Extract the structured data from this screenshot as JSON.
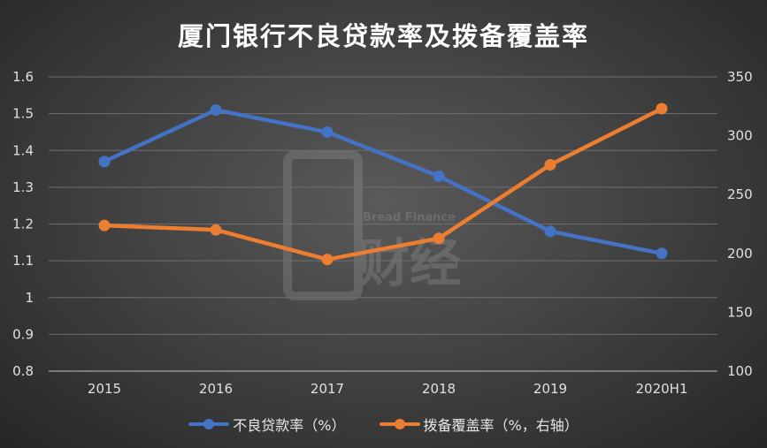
{
  "chart_data": {
    "type": "line",
    "title": "厦门银行不良贷款率及拨备覆盖率",
    "categories": [
      "2015",
      "2016",
      "2017",
      "2018",
      "2019",
      "2020H1"
    ],
    "series": [
      {
        "name": "不良贷款率（%）",
        "axis": "left",
        "color": "#4472c4",
        "values": [
          1.37,
          1.51,
          1.45,
          1.33,
          1.18,
          1.12
        ]
      },
      {
        "name": "拨备覆盖率（%，右轴）",
        "axis": "right",
        "color": "#ed7d31",
        "values": [
          223.8,
          220.0,
          194.9,
          212.8,
          275.3,
          323.0
        ]
      }
    ],
    "left_axis": {
      "ylim": [
        0.8,
        1.6
      ],
      "ticks": [
        "0.8",
        "0.9",
        "1",
        "1.1",
        "1.2",
        "1.3",
        "1.4",
        "1.5",
        "1.6"
      ]
    },
    "right_axis": {
      "ylim": [
        100,
        350
      ],
      "ticks": [
        "100",
        "150",
        "200",
        "250",
        "300",
        "350"
      ]
    },
    "grid": true,
    "legend_position": "bottom",
    "watermark": "Bread Finance 面包财经"
  }
}
